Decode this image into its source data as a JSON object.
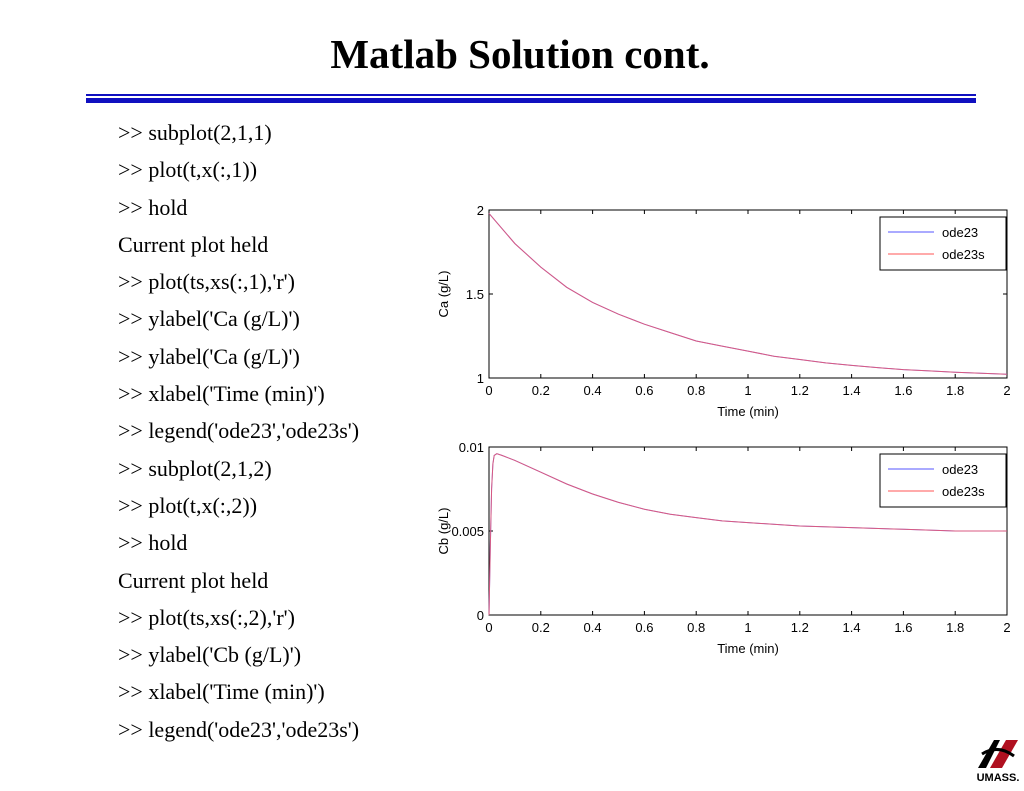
{
  "slide": {
    "title": "Matlab Solution cont.",
    "rule_color": "#1010c0"
  },
  "code_lines": [
    ">> subplot(2,1,1)",
    ">> plot(t,x(:,1))",
    ">> hold",
    "Current plot held",
    ">> plot(ts,xs(:,1),'r')",
    ">> ylabel('Ca (g/L)')",
    ">> ylabel('Ca (g/L)')",
    ">> xlabel('Time (min)')",
    ">> legend('ode23','ode23s')",
    ">> subplot(2,1,2)",
    ">> plot(t,x(:,2))",
    ">> hold",
    "Current plot held",
    ">> plot(ts,xs(:,2),'r')",
    ">> ylabel('Cb (g/L)')",
    ">> xlabel('Time (min)')",
    ">> legend('ode23','ode23s')"
  ],
  "logo": {
    "text": "UMASS.",
    "icon": "umass-logo-icon",
    "color": "#b01020"
  },
  "chart_data": [
    {
      "type": "line",
      "title": "",
      "xlabel": "Time (min)",
      "ylabel": "Ca (g/L)",
      "xlim": [
        0,
        2
      ],
      "ylim": [
        1,
        2
      ],
      "xticks": [
        "0",
        "0.2",
        "0.4",
        "0.6",
        "0.8",
        "1",
        "1.2",
        "1.4",
        "1.6",
        "1.8",
        "2"
      ],
      "yticks": [
        "1",
        "1.5",
        "2"
      ],
      "legend_position": "top-right",
      "grid": false,
      "x": [
        0,
        0.1,
        0.2,
        0.3,
        0.4,
        0.5,
        0.6,
        0.7,
        0.8,
        0.9,
        1.0,
        1.1,
        1.2,
        1.3,
        1.4,
        1.5,
        1.6,
        1.7,
        1.8,
        1.9,
        2.0
      ],
      "series": [
        {
          "name": "ode23",
          "color": "#5555ff",
          "values": [
            1.98,
            1.8,
            1.66,
            1.54,
            1.45,
            1.38,
            1.32,
            1.27,
            1.22,
            1.19,
            1.16,
            1.13,
            1.11,
            1.09,
            1.075,
            1.062,
            1.05,
            1.042,
            1.034,
            1.028,
            1.022
          ]
        },
        {
          "name": "ode23s",
          "color": "#ff5555",
          "values": [
            1.98,
            1.8,
            1.66,
            1.54,
            1.45,
            1.38,
            1.32,
            1.27,
            1.22,
            1.19,
            1.16,
            1.13,
            1.11,
            1.09,
            1.075,
            1.062,
            1.05,
            1.042,
            1.034,
            1.028,
            1.022
          ]
        }
      ]
    },
    {
      "type": "line",
      "title": "",
      "xlabel": "Time (min)",
      "ylabel": "Cb (g/L)",
      "xlim": [
        0,
        2
      ],
      "ylim": [
        0,
        0.01
      ],
      "xticks": [
        "0",
        "0.2",
        "0.4",
        "0.6",
        "0.8",
        "1",
        "1.2",
        "1.4",
        "1.6",
        "1.8",
        "2"
      ],
      "yticks": [
        "0",
        "0.005",
        "0.01"
      ],
      "legend_position": "top-right",
      "grid": false,
      "x": [
        0,
        0.005,
        0.01,
        0.015,
        0.02,
        0.03,
        0.05,
        0.1,
        0.2,
        0.3,
        0.4,
        0.5,
        0.6,
        0.7,
        0.8,
        0.9,
        1.0,
        1.2,
        1.4,
        1.6,
        1.8,
        2.0
      ],
      "series": [
        {
          "name": "ode23",
          "color": "#5555ff",
          "values": [
            0,
            0.004,
            0.0075,
            0.009,
            0.0095,
            0.0096,
            0.0095,
            0.0092,
            0.0085,
            0.0078,
            0.0072,
            0.0067,
            0.0063,
            0.006,
            0.0058,
            0.0056,
            0.0055,
            0.0053,
            0.0052,
            0.0051,
            0.005,
            0.005
          ]
        },
        {
          "name": "ode23s",
          "color": "#ff5555",
          "values": [
            0,
            0.004,
            0.0075,
            0.009,
            0.0095,
            0.0096,
            0.0095,
            0.0092,
            0.0085,
            0.0078,
            0.0072,
            0.0067,
            0.0063,
            0.006,
            0.0058,
            0.0056,
            0.0055,
            0.0053,
            0.0052,
            0.0051,
            0.005,
            0.005
          ]
        }
      ]
    }
  ]
}
